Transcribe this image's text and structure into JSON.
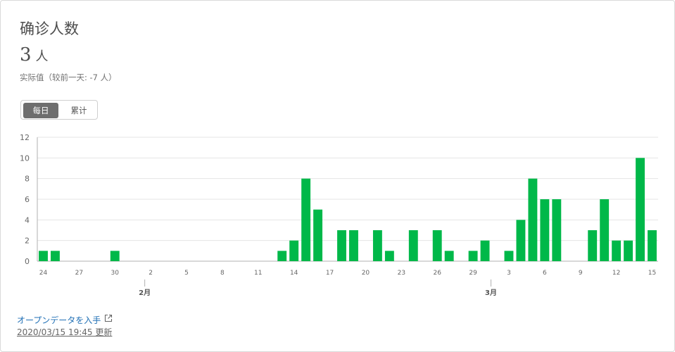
{
  "card": {
    "title": "确诊人数",
    "value": "3",
    "unit": "人",
    "subtitle": "实际值（较前一天: -7 人）",
    "toggle": {
      "daily": "每日",
      "cumulative": "累计"
    },
    "open_data_link": "オープンデータを入手",
    "updated": "2020/03/15 19:45 更新"
  },
  "colors": {
    "bar": "#00b849",
    "grid": "#e5e5e5",
    "axis": "#b0b0b0",
    "active_toggle": "#6e6e6e",
    "link": "#1f6fb5"
  },
  "chart_data": {
    "type": "bar",
    "ylim": [
      0,
      12
    ],
    "yticks": [
      0,
      2,
      4,
      6,
      8,
      10,
      12
    ],
    "grid": true,
    "x": [
      "1/24",
      "1/25",
      "1/26",
      "1/27",
      "1/28",
      "1/29",
      "1/30",
      "1/31",
      "2/1",
      "2/2",
      "2/3",
      "2/4",
      "2/5",
      "2/6",
      "2/7",
      "2/8",
      "2/9",
      "2/10",
      "2/11",
      "2/12",
      "2/13",
      "2/14",
      "2/15",
      "2/16",
      "2/17",
      "2/18",
      "2/19",
      "2/20",
      "2/21",
      "2/22",
      "2/23",
      "2/24",
      "2/25",
      "2/26",
      "2/27",
      "2/28",
      "2/29",
      "3/1",
      "3/2",
      "3/3",
      "3/4",
      "3/5",
      "3/6",
      "3/7",
      "3/8",
      "3/9",
      "3/10",
      "3/11",
      "3/12",
      "3/13",
      "3/14",
      "3/15"
    ],
    "values": [
      1,
      1,
      0,
      0,
      0,
      0,
      1,
      0,
      0,
      0,
      0,
      0,
      0,
      0,
      0,
      0,
      0,
      0,
      0,
      0,
      1,
      2,
      8,
      5,
      0,
      3,
      3,
      0,
      3,
      1,
      0,
      3,
      0,
      3,
      1,
      0,
      1,
      2,
      0,
      1,
      4,
      8,
      6,
      6,
      0,
      0,
      3,
      6,
      2,
      2,
      10,
      3
    ],
    "tick_labels": [
      "24",
      "27",
      "30",
      "2",
      "5",
      "8",
      "11",
      "14",
      "17",
      "20",
      "23",
      "26",
      "29",
      "3",
      "6",
      "9",
      "12",
      "15"
    ],
    "tick_index": [
      0,
      3,
      6,
      9,
      12,
      15,
      18,
      21,
      24,
      27,
      30,
      33,
      36,
      39,
      42,
      45,
      48,
      51
    ],
    "month_labels": [
      {
        "label": "2月",
        "index": 8.5
      },
      {
        "label": "3月",
        "index": 37.5
      }
    ]
  }
}
